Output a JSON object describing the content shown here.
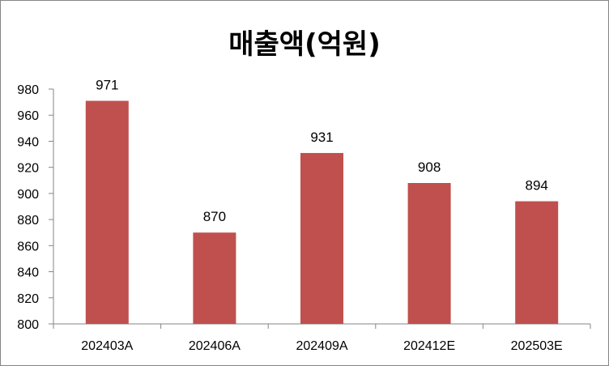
{
  "chart_data": {
    "type": "bar",
    "title": "매출액(억원)",
    "categories": [
      "202403A",
      "202406A",
      "202409A",
      "202412E",
      "202503E"
    ],
    "values": [
      971,
      870,
      931,
      908,
      894
    ],
    "ylim": [
      800,
      980
    ],
    "yticks": [
      800,
      820,
      840,
      860,
      880,
      900,
      920,
      940,
      960,
      980
    ],
    "grid": false,
    "legend": "none",
    "bar_color": "#C0504D",
    "data_labels": true
  }
}
